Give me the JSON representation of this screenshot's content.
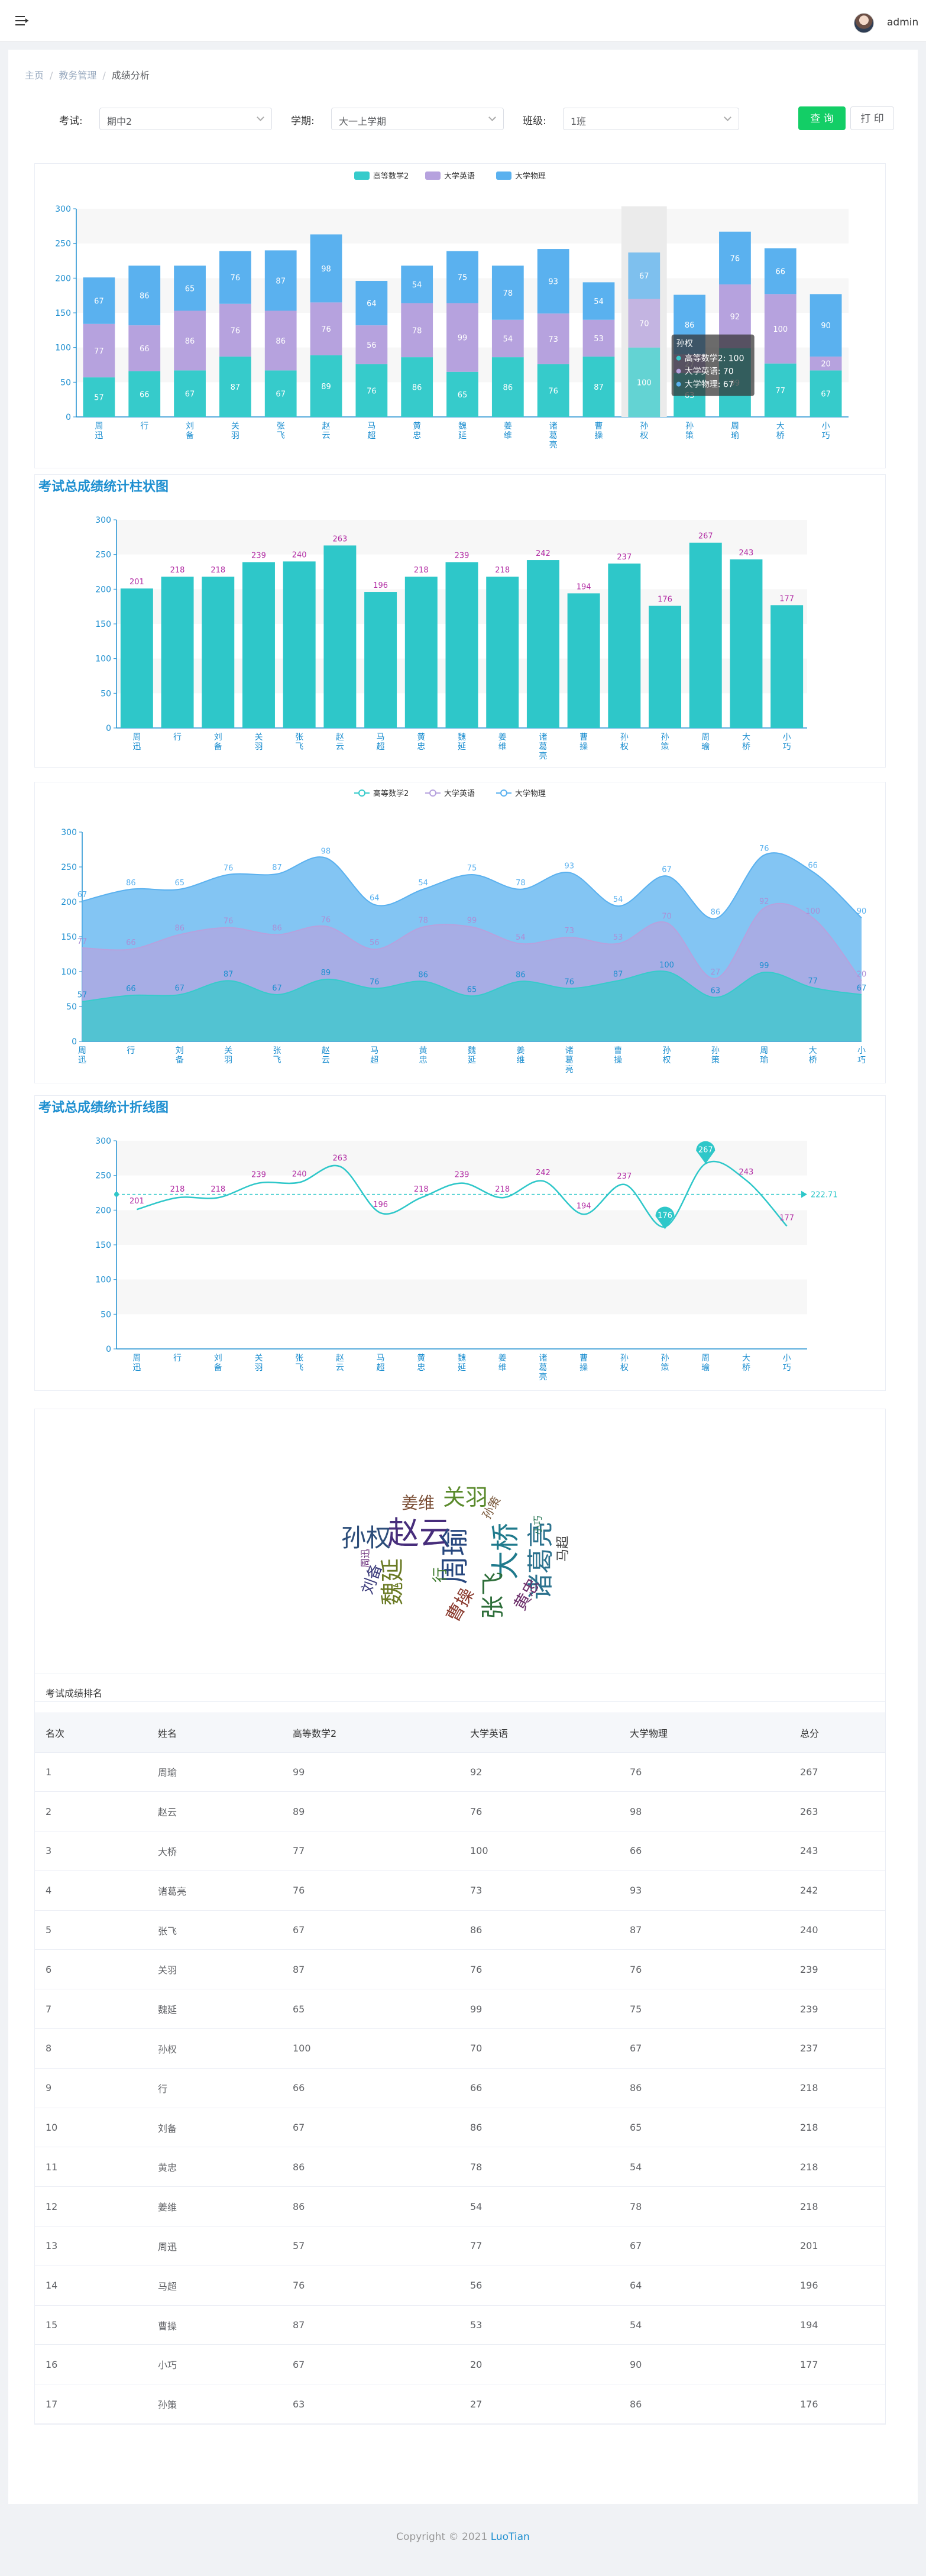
{
  "header": {
    "username": "admin"
  },
  "breadcrumb": [
    "主页",
    "教务管理",
    "成绩分析"
  ],
  "filters": {
    "exam_label": "考试:",
    "exam_value": "期中2",
    "term_label": "学期:",
    "term_value": "大一上学期",
    "class_label": "班级:",
    "class_value": "1班",
    "query_button": "查 询",
    "print_button": "打 印"
  },
  "colors": {
    "s1": "#36cbcb",
    "s2": "#b6a2de",
    "s3": "#5ab1ef",
    "total": "#2ec7c9",
    "label": "#b22ca4",
    "axis": "#1e8fd0"
  },
  "students": [
    "周迅",
    "行",
    "刘备",
    "关羽",
    "张飞",
    "赵云",
    "马超",
    "黄忠",
    "魏延",
    "姜维",
    "诸葛亮",
    "曹操",
    "孙权",
    "孙策",
    "周瑜",
    "大桥",
    "小巧"
  ],
  "student_labels": [
    [
      "周",
      "迅"
    ],
    [
      "行"
    ],
    [
      "刘",
      "备"
    ],
    [
      "关",
      "羽"
    ],
    [
      "张",
      "飞"
    ],
    [
      "赵",
      "云"
    ],
    [
      "马",
      "超"
    ],
    [
      "黄",
      "忠"
    ],
    [
      "魏",
      "延"
    ],
    [
      "姜",
      "维"
    ],
    [
      "诸",
      "葛",
      "亮"
    ],
    [
      "曹",
      "操"
    ],
    [
      "孙",
      "权"
    ],
    [
      "孙",
      "策"
    ],
    [
      "周",
      "瑜"
    ],
    [
      "大",
      "桥"
    ],
    [
      "小",
      "巧"
    ]
  ],
  "chart_data": [
    {
      "type": "bar",
      "stacked": true,
      "legend": [
        "高等数学2",
        "大学英语",
        "大学物理"
      ],
      "categories": [
        "周迅",
        "行",
        "刘备",
        "关羽",
        "张飞",
        "赵云",
        "马超",
        "黄忠",
        "魏延",
        "姜维",
        "诸葛亮",
        "曹操",
        "孙权",
        "孙策",
        "周瑜",
        "大桥",
        "小巧"
      ],
      "series": [
        {
          "name": "高等数学2",
          "values": [
            57,
            66,
            67,
            87,
            67,
            89,
            76,
            86,
            65,
            86,
            76,
            87,
            100,
            63,
            99,
            77,
            67
          ]
        },
        {
          "name": "大学英语",
          "values": [
            77,
            66,
            86,
            76,
            86,
            76,
            56,
            78,
            99,
            54,
            73,
            53,
            70,
            27,
            92,
            100,
            20
          ]
        },
        {
          "name": "大学物理",
          "values": [
            67,
            86,
            65,
            76,
            87,
            98,
            64,
            54,
            75,
            78,
            93,
            54,
            67,
            86,
            76,
            66,
            90
          ]
        }
      ],
      "ylim": [
        0,
        300
      ],
      "yticks": [
        0,
        50,
        100,
        150,
        200,
        250,
        300
      ],
      "tooltip": {
        "title": "孙权",
        "lines": [
          "高等数学2: 100",
          "大学英语: 70",
          "大学物理: 67"
        ]
      }
    },
    {
      "type": "bar",
      "title": "考试总成绩统计柱状图",
      "categories": [
        "周迅",
        "行",
        "刘备",
        "关羽",
        "张飞",
        "赵云",
        "马超",
        "黄忠",
        "魏延",
        "姜维",
        "诸葛亮",
        "曹操",
        "孙权",
        "孙策",
        "周瑜",
        "大桥",
        "小巧"
      ],
      "values": [
        201,
        218,
        218,
        239,
        240,
        263,
        196,
        218,
        239,
        218,
        242,
        194,
        237,
        176,
        267,
        243,
        177
      ],
      "ylim": [
        0,
        300
      ],
      "yticks": [
        0,
        50,
        100,
        150,
        200,
        250,
        300
      ]
    },
    {
      "type": "area",
      "stacked": true,
      "legend": [
        "高等数学2",
        "大学英语",
        "大学物理"
      ],
      "categories": [
        "周迅",
        "行",
        "刘备",
        "关羽",
        "张飞",
        "赵云",
        "马超",
        "黄忠",
        "魏延",
        "姜维",
        "诸葛亮",
        "曹操",
        "孙权",
        "孙策",
        "周瑜",
        "大桥",
        "小巧"
      ],
      "ylim": [
        0,
        300
      ],
      "yticks": [
        0,
        50,
        100,
        150,
        200,
        250,
        300
      ]
    },
    {
      "type": "line",
      "title": "考试总成绩统计折线图",
      "categories": [
        "周迅",
        "行",
        "刘备",
        "关羽",
        "张飞",
        "赵云",
        "马超",
        "黄忠",
        "魏延",
        "姜维",
        "诸葛亮",
        "曹操",
        "孙权",
        "孙策",
        "周瑜",
        "大桥",
        "小巧"
      ],
      "values": [
        201,
        218,
        218,
        239,
        240,
        263,
        196,
        218,
        239,
        218,
        242,
        194,
        237,
        176,
        267,
        243,
        177
      ],
      "max": 267,
      "min": 176,
      "average": "222.71",
      "ylim": [
        0,
        300
      ],
      "yticks": [
        0,
        50,
        100,
        150,
        200,
        250,
        300
      ]
    }
  ],
  "wordcloud": {
    "words": [
      "赵云",
      "周瑜",
      "大桥",
      "诸葛亮",
      "张飞",
      "孙权",
      "关羽",
      "魏延",
      "刘备",
      "黄忠",
      "姜维",
      "曹操",
      "行",
      "周迅",
      "孙策",
      "马超",
      "小巧"
    ]
  },
  "ranking": {
    "caption": "考试成绩排名",
    "headers": [
      "名次",
      "姓名",
      "高等数学2",
      "大学英语",
      "大学物理",
      "总分"
    ],
    "rows": [
      [
        "1",
        "周瑜",
        "99",
        "92",
        "76",
        "267"
      ],
      [
        "2",
        "赵云",
        "89",
        "76",
        "98",
        "263"
      ],
      [
        "3",
        "大桥",
        "77",
        "100",
        "66",
        "243"
      ],
      [
        "4",
        "诸葛亮",
        "76",
        "73",
        "93",
        "242"
      ],
      [
        "5",
        "张飞",
        "67",
        "86",
        "87",
        "240"
      ],
      [
        "6",
        "关羽",
        "87",
        "76",
        "76",
        "239"
      ],
      [
        "7",
        "魏延",
        "65",
        "99",
        "75",
        "239"
      ],
      [
        "8",
        "孙权",
        "100",
        "70",
        "67",
        "237"
      ],
      [
        "9",
        "行",
        "66",
        "66",
        "86",
        "218"
      ],
      [
        "10",
        "刘备",
        "67",
        "86",
        "65",
        "218"
      ],
      [
        "11",
        "黄忠",
        "86",
        "78",
        "54",
        "218"
      ],
      [
        "12",
        "姜维",
        "86",
        "54",
        "78",
        "218"
      ],
      [
        "13",
        "周迅",
        "57",
        "77",
        "67",
        "201"
      ],
      [
        "14",
        "马超",
        "76",
        "56",
        "64",
        "196"
      ],
      [
        "15",
        "曹操",
        "87",
        "53",
        "54",
        "194"
      ],
      [
        "16",
        "小巧",
        "67",
        "20",
        "90",
        "177"
      ],
      [
        "17",
        "孙策",
        "63",
        "27",
        "86",
        "176"
      ]
    ]
  },
  "footer": {
    "text": "Copyright © 2021",
    "link": "LuoTian"
  }
}
